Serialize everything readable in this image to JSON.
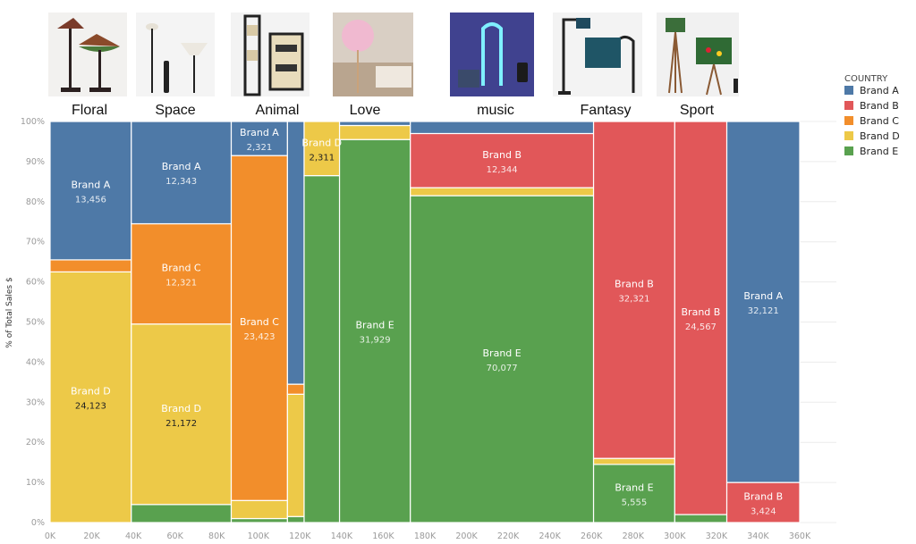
{
  "chart_data": {
    "type": "mosaic",
    "ylabel": "% of Total Sales $",
    "legend": {
      "title": "COUNTRY",
      "placement": "right-top"
    },
    "colors": {
      "Brand A": "#4e79a7",
      "Brand B": "#e15759",
      "Brand C": "#f28e2b",
      "Brand D": "#edc948",
      "Brand E": "#59a14f"
    },
    "stack_order": [
      "Brand E",
      "Brand D",
      "Brand C",
      "Brand B",
      "Brand A"
    ],
    "xlim": [
      0,
      360000
    ],
    "ylim": [
      0,
      100
    ],
    "x_ticks": [
      "0K",
      "20K",
      "40K",
      "60K",
      "80K",
      "100K",
      "120K",
      "140K",
      "160K",
      "180K",
      "200K",
      "220K",
      "240K",
      "260K",
      "280K",
      "300K",
      "320K",
      "340K",
      "360K"
    ],
    "y_ticks": [
      "0%",
      "10%",
      "20%",
      "30%",
      "40%",
      "50%",
      "60%",
      "70%",
      "80%",
      "90%",
      "100%"
    ],
    "category_titles": [
      "Floral",
      "Space",
      "Animal",
      "Love",
      "music",
      "Fantasy",
      "Sport"
    ],
    "columns": [
      {
        "x0": 0,
        "x1": 39000,
        "segments": [
          {
            "brand": "Brand D",
            "pct": 62.5,
            "label": "Brand D",
            "value": "24,123"
          },
          {
            "brand": "Brand C",
            "pct": 3.0
          },
          {
            "brand": "Brand A",
            "pct": 34.5,
            "label": "Brand A",
            "value": "13,456"
          }
        ]
      },
      {
        "x0": 39000,
        "x1": 87000,
        "segments": [
          {
            "brand": "Brand E",
            "pct": 4.5
          },
          {
            "brand": "Brand D",
            "pct": 45.0,
            "label": "Brand D",
            "value": "21,172"
          },
          {
            "brand": "Brand C",
            "pct": 25.0,
            "label": "Brand C",
            "value": "12,321"
          },
          {
            "brand": "Brand A",
            "pct": 25.5,
            "label": "Brand A",
            "value": "12,343"
          }
        ]
      },
      {
        "x0": 87000,
        "x1": 114000,
        "segments": [
          {
            "brand": "Brand E",
            "pct": 1.0
          },
          {
            "brand": "Brand D",
            "pct": 4.5
          },
          {
            "brand": "Brand C",
            "pct": 86.0,
            "label": "Brand C",
            "value": "23,423"
          },
          {
            "brand": "Brand A",
            "pct": 8.5,
            "label": "Brand A",
            "value": "2,321"
          }
        ]
      },
      {
        "x0": 114000,
        "x1": 122000,
        "segments": [
          {
            "brand": "Brand E",
            "pct": 1.5
          },
          {
            "brand": "Brand D",
            "pct": 30.5
          },
          {
            "brand": "Brand C",
            "pct": 2.5
          },
          {
            "brand": "Brand A",
            "pct": 65.5
          }
        ]
      },
      {
        "x0": 122000,
        "x1": 139000,
        "segments": [
          {
            "brand": "Brand E",
            "pct": 86.5
          },
          {
            "brand": "Brand D",
            "pct": 13.5,
            "label": "Brand D",
            "value": "2,311"
          }
        ]
      },
      {
        "x0": 139000,
        "x1": 173000,
        "segments": [
          {
            "brand": "Brand E",
            "pct": 95.5,
            "label": "Brand E",
            "value": "31,929"
          },
          {
            "brand": "Brand D",
            "pct": 3.5
          },
          {
            "brand": "Brand A",
            "pct": 1.0
          }
        ]
      },
      {
        "x0": 173000,
        "x1": 261000,
        "segments": [
          {
            "brand": "Brand E",
            "pct": 81.5,
            "label": "Brand E",
            "value": "70,077"
          },
          {
            "brand": "Brand D",
            "pct": 2.0
          },
          {
            "brand": "Brand B",
            "pct": 13.5,
            "label": "Brand B",
            "value": "12,344"
          },
          {
            "brand": "Brand A",
            "pct": 3.0
          }
        ]
      },
      {
        "x0": 261000,
        "x1": 300000,
        "segments": [
          {
            "brand": "Brand E",
            "pct": 14.5,
            "label": "Brand E",
            "value": "5,555"
          },
          {
            "brand": "Brand D",
            "pct": 1.5
          },
          {
            "brand": "Brand B",
            "pct": 84.0,
            "label": "Brand B",
            "value": "32,321"
          }
        ]
      },
      {
        "x0": 300000,
        "x1": 325000,
        "segments": [
          {
            "brand": "Brand E",
            "pct": 2.0
          },
          {
            "brand": "Brand B",
            "pct": 98.0,
            "label": "Brand B",
            "value": "24,567"
          }
        ]
      },
      {
        "x0": 325000,
        "x1": 360000,
        "segments": [
          {
            "brand": "Brand B",
            "pct": 10.0,
            "label": "Brand B",
            "value": "3,424"
          },
          {
            "brand": "Brand A",
            "pct": 90.0,
            "label": "Brand A",
            "value": "32,121"
          }
        ]
      }
    ]
  }
}
